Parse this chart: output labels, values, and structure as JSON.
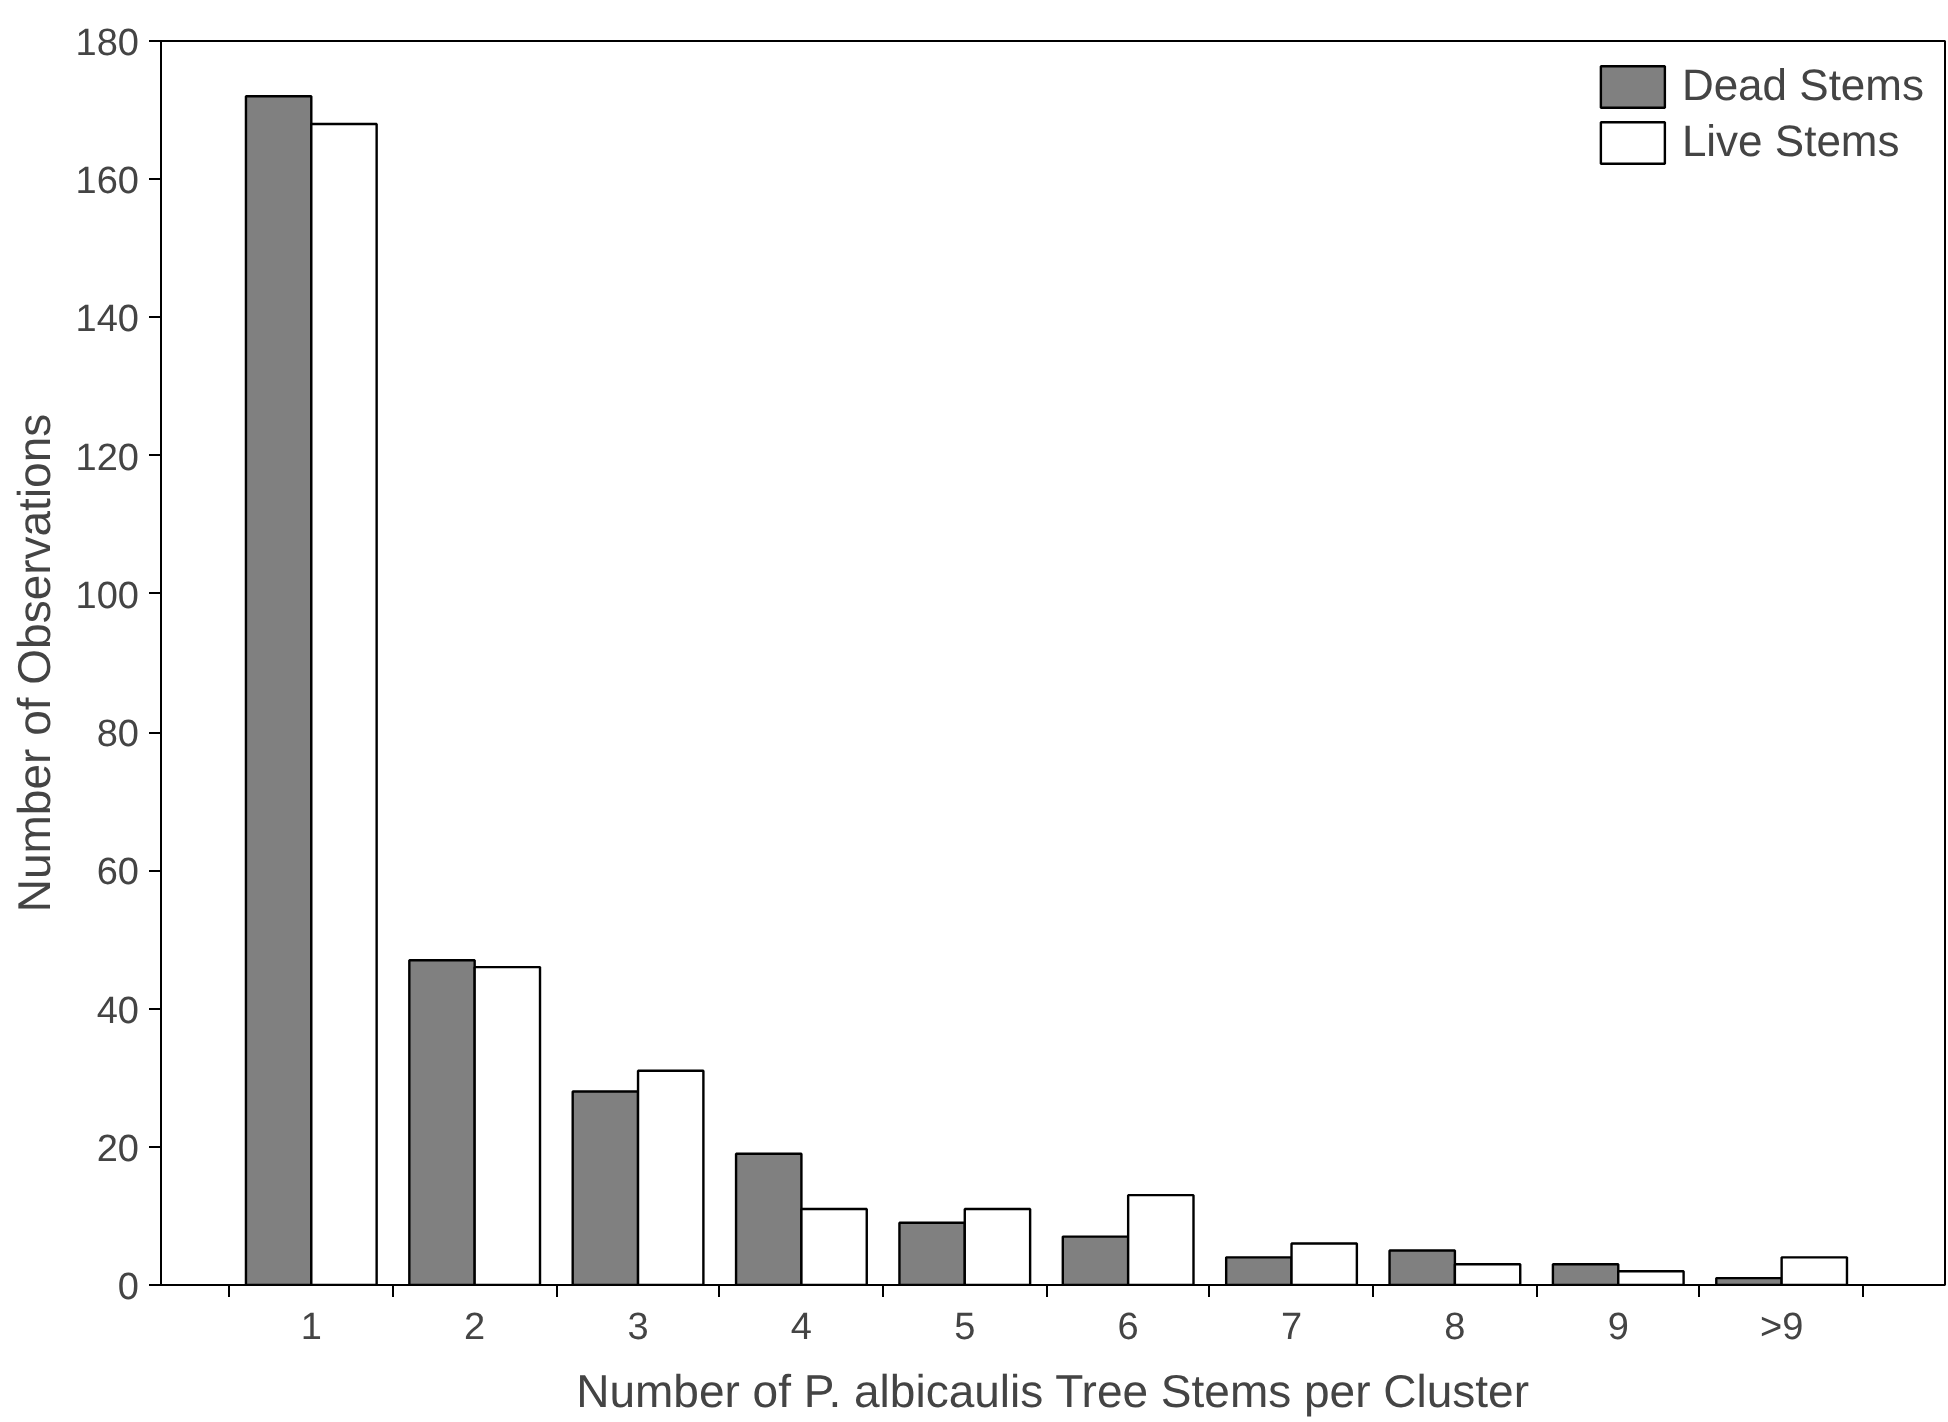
{
  "chart_data": {
    "type": "bar",
    "xlabel": "Number of P. albicaulis Tree Stems per Cluster",
    "ylabel": "Number of Observations",
    "categories": [
      "1",
      "2",
      "3",
      "4",
      "5",
      "6",
      "7",
      "8",
      "9",
      ">9"
    ],
    "series": [
      {
        "name": "Dead Stems",
        "color": "#808080",
        "values": [
          172,
          47,
          28,
          19,
          9,
          7,
          4,
          5,
          3,
          1
        ]
      },
      {
        "name": "Live Stems",
        "color": "#ffffff",
        "values": [
          168,
          46,
          31,
          11,
          11,
          13,
          6,
          3,
          2,
          4
        ]
      }
    ],
    "ylim": [
      0,
      180
    ],
    "yticks": [
      0,
      20,
      40,
      60,
      80,
      100,
      120,
      140,
      160,
      180
    ],
    "grid": false,
    "legend": "top right"
  }
}
